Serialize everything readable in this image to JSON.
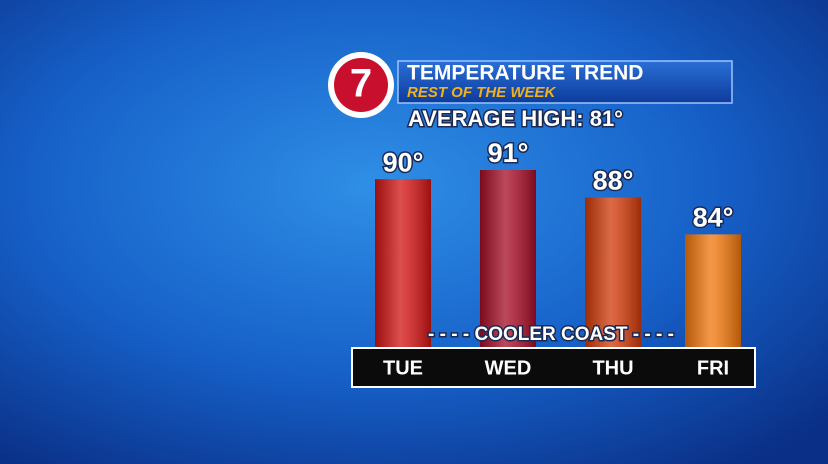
{
  "chart_data": {
    "type": "bar",
    "logo": "7",
    "title": "TEMPERATURE TREND",
    "subtitle": "REST OF THE WEEK",
    "annotations": [
      "AVERAGE HIGH: 81°",
      "- - - - COOLER COAST - - - -"
    ],
    "categories": [
      "TUE",
      "WED",
      "THU",
      "FRI"
    ],
    "values": [
      90,
      91,
      88,
      84
    ],
    "value_labels": [
      "90°",
      "91°",
      "88°",
      "84°"
    ],
    "colors": [
      "#d01414",
      "#a50d26",
      "#cf3a0a",
      "#ee760c"
    ]
  }
}
